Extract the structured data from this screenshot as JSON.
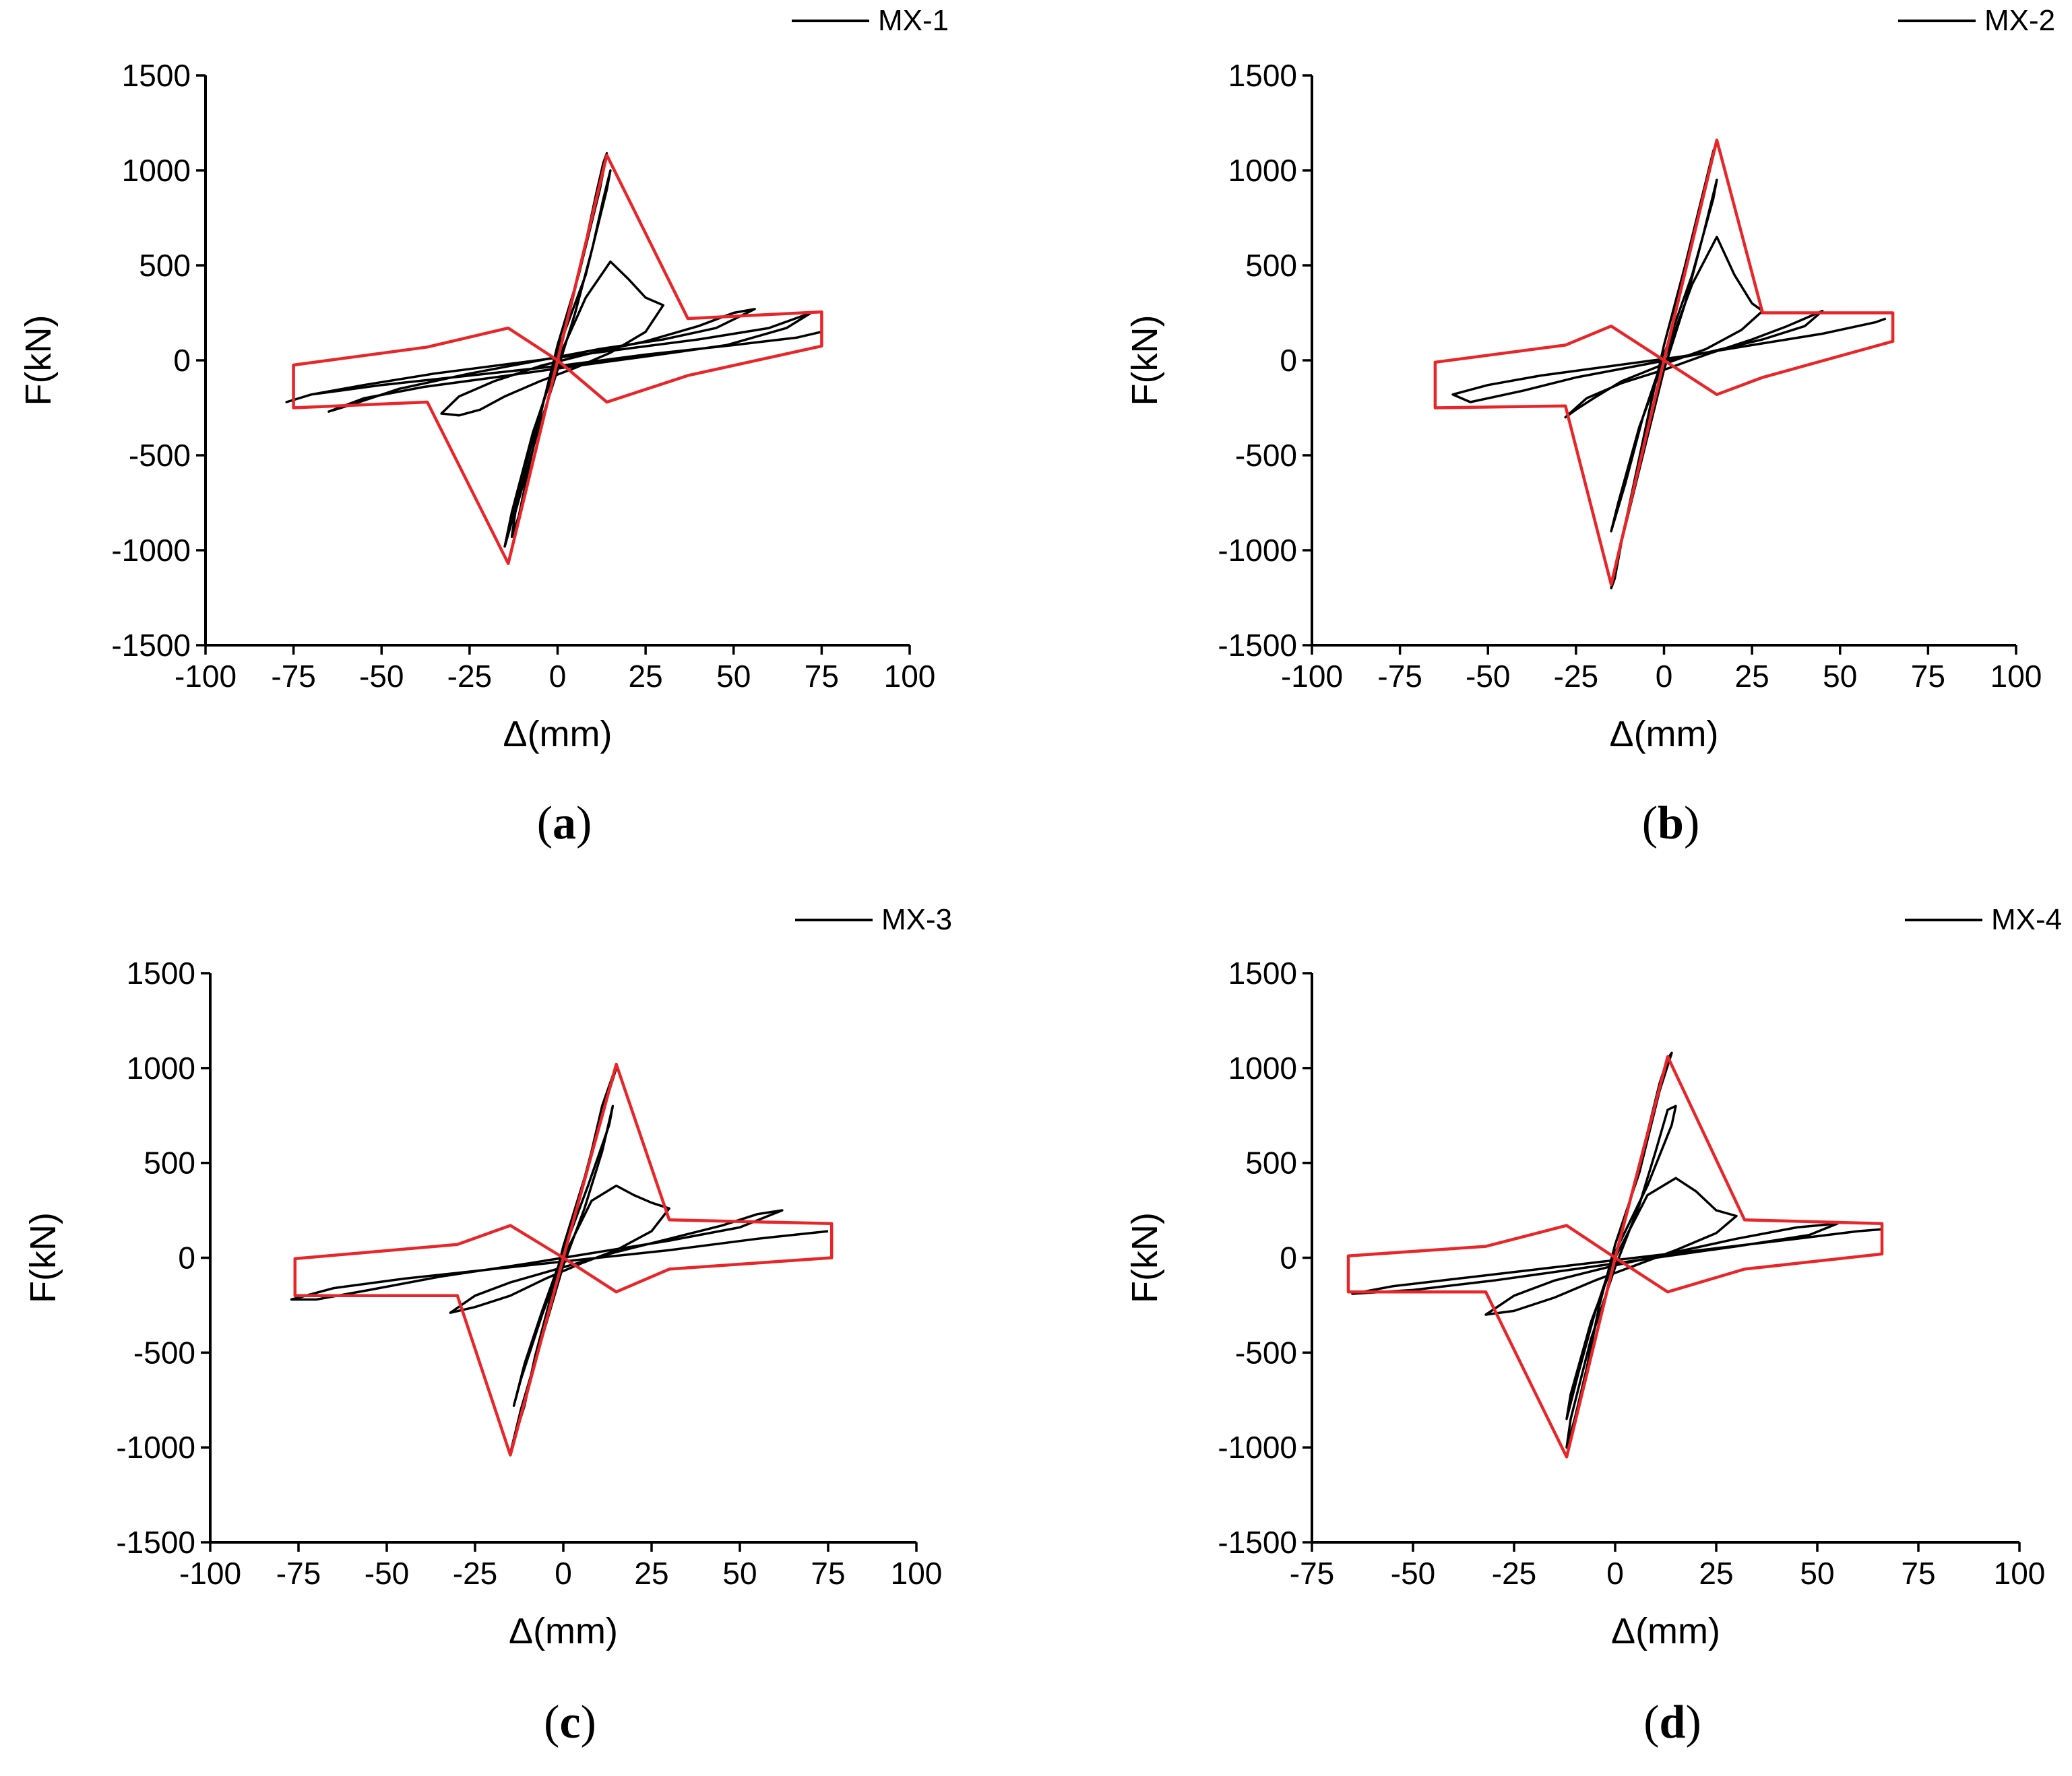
{
  "figure": {
    "colors": {
      "hysteresis": "#000000",
      "envelope": "#e8262a",
      "axis": "#000000"
    },
    "chart_data": [
      {
        "type": "line",
        "panel_caption": "a",
        "legend": "MX-1",
        "xlabel": "Δ(mm)",
        "ylabel": "F(kN)",
        "xlim": [
          -100,
          100
        ],
        "ylim": [
          -1500,
          1500
        ],
        "xticks": [
          -100,
          -75,
          -50,
          -25,
          0,
          25,
          50,
          75,
          100
        ],
        "yticks": [
          -1500,
          -1000,
          -500,
          0,
          500,
          1000,
          1500
        ],
        "tick_labels_x": [
          "-100",
          "-75",
          "-50",
          "-25",
          "0",
          "25",
          "50",
          "75",
          "100"
        ],
        "tick_labels_y": [
          "-1500",
          "-1000",
          "-500",
          "0",
          "500",
          "1000",
          "1500"
        ],
        "series": [
          {
            "name": "MX-1 hysteresis",
            "color": "#000000",
            "x": [
              0,
              4,
              8,
              11,
              13,
              14,
              12,
              6,
              0,
              -4,
              -8,
              -11,
              -13,
              -12,
              -6,
              0,
              5,
              10,
              13,
              15,
              14,
              8,
              0,
              -5,
              -10,
              -13,
              -15,
              -13,
              -7,
              0,
              8,
              15,
              20,
              25,
              30,
              25,
              15,
              5,
              -5,
              -15,
              -22,
              -28,
              -33,
              -28,
              -18,
              -5,
              10,
              25,
              40,
              50,
              56,
              45,
              30,
              12,
              -5,
              -25,
              -45,
              -58,
              -65,
              -55,
              -38,
              -18,
              5,
              25,
              48,
              65,
              72,
              60,
              40,
              15,
              -10,
              -35,
              -55,
              -70,
              -77,
              -70,
              -50,
              -25,
              0,
              25,
              50,
              68,
              75
            ],
            "y": [
              0,
              300,
              620,
              880,
              1040,
              1090,
              900,
              450,
              80,
              -220,
              -550,
              -820,
              -930,
              -800,
              -400,
              -50,
              250,
              600,
              850,
              1000,
              900,
              450,
              50,
              -280,
              -620,
              -850,
              -980,
              -800,
              -380,
              0,
              330,
              520,
              430,
              330,
              290,
              150,
              40,
              -40,
              -110,
              -190,
              -260,
              -290,
              -280,
              -190,
              -110,
              -30,
              40,
              100,
              180,
              250,
              270,
              170,
              110,
              60,
              0,
              -70,
              -150,
              -230,
              -270,
              -200,
              -140,
              -90,
              -30,
              20,
              80,
              170,
              250,
              170,
              110,
              50,
              -10,
              -70,
              -130,
              -180,
              -220,
              -180,
              -130,
              -80,
              -30,
              30,
              80,
              120,
              150
            ]
          },
          {
            "name": "MX-1 envelope",
            "color": "#e8262a",
            "x": [
              0,
              14,
              37,
              75,
              75,
              37,
              14,
              0,
              -14,
              -37,
              -75,
              -75,
              -37,
              -14,
              0
            ],
            "y": [
              0,
              1080,
              220,
              255,
              75,
              -80,
              -220,
              0,
              -1070,
              -220,
              -250,
              -25,
              70,
              170,
              0
            ]
          }
        ]
      },
      {
        "type": "line",
        "panel_caption": "b",
        "legend": "MX-2",
        "xlabel": "Δ(mm)",
        "ylabel": "F(kN)",
        "xlim": [
          -100,
          100
        ],
        "ylim": [
          -1500,
          1500
        ],
        "xticks": [
          -100,
          -75,
          -50,
          -25,
          0,
          25,
          50,
          75,
          100
        ],
        "yticks": [
          -1500,
          -1000,
          -500,
          0,
          500,
          1000,
          1500
        ],
        "tick_labels_x": [
          "-100",
          "-75",
          "-50",
          "-25",
          "0",
          "25",
          "50",
          "75",
          "100"
        ],
        "tick_labels_y": [
          "-1500",
          "-1000",
          "-500",
          "0",
          "500",
          "1000",
          "1500"
        ],
        "series": [
          {
            "name": "MX-2 hysteresis",
            "color": "#000000",
            "x": [
              0,
              4,
              8,
              12,
              14,
              15,
              12,
              6,
              0,
              -4,
              -8,
              -12,
              -14,
              -15,
              -12,
              -6,
              0,
              6,
              11,
              15,
              14,
              8,
              0,
              -6,
              -11,
              -15,
              -13,
              -7,
              0,
              8,
              15,
              20,
              25,
              28,
              22,
              12,
              0,
              -12,
              -20,
              -25,
              -28,
              -22,
              -12,
              0,
              12,
              25,
              35,
              45,
              40,
              28,
              12,
              -5,
              -25,
              -40,
              -55,
              -60,
              -50,
              -35,
              -15,
              5,
              25,
              45,
              60,
              63
            ],
            "y": [
              0,
              320,
              650,
              950,
              1100,
              1150,
              950,
              500,
              80,
              -250,
              -600,
              -950,
              -1150,
              -1200,
              -950,
              -500,
              -50,
              300,
              650,
              950,
              850,
              450,
              30,
              -300,
              -650,
              -900,
              -750,
              -350,
              0,
              400,
              650,
              450,
              300,
              260,
              160,
              60,
              -20,
              -110,
              -200,
              -260,
              -300,
              -200,
              -120,
              -50,
              30,
              110,
              180,
              260,
              180,
              110,
              40,
              -20,
              -90,
              -160,
              -220,
              -180,
              -130,
              -80,
              -30,
              20,
              80,
              140,
              200,
              220
            ]
          },
          {
            "name": "MX-2 envelope",
            "color": "#e8262a",
            "x": [
              0,
              15,
              28,
              65,
              65,
              28,
              15,
              0,
              -15,
              -28,
              -65,
              -65,
              -28,
              -15,
              0
            ],
            "y": [
              0,
              1160,
              250,
              250,
              100,
              -90,
              -180,
              0,
              -1180,
              -240,
              -250,
              -10,
              80,
              180,
              0
            ]
          }
        ]
      },
      {
        "type": "line",
        "panel_caption": "c",
        "legend": "MX-3",
        "xlabel": "Δ(mm)",
        "ylabel": "F(kN)",
        "xlim": [
          -100,
          100
        ],
        "ylim": [
          -1500,
          1500
        ],
        "xticks": [
          -100,
          -75,
          -50,
          -25,
          0,
          25,
          50,
          75,
          100
        ],
        "yticks": [
          -1500,
          -1000,
          -500,
          0,
          500,
          1000,
          1500
        ],
        "tick_labels_x": [
          "-100",
          "-75",
          "-50",
          "-25",
          "0",
          "25",
          "50",
          "75",
          "100"
        ],
        "tick_labels_y": [
          "-1500",
          "-1000",
          "-500",
          "0",
          "500",
          "1000",
          "1500"
        ],
        "series": [
          {
            "name": "MX-3 hysteresis",
            "color": "#000000",
            "x": [
              0,
              4,
              8,
              11,
              14,
              15,
              12,
              6,
              0,
              -4,
              -8,
              -11,
              -14,
              -15,
              -12,
              -6,
              0,
              6,
              11,
              14,
              13,
              7,
              0,
              -6,
              -11,
              -14,
              -12,
              -6,
              0,
              8,
              15,
              20,
              25,
              30,
              25,
              15,
              5,
              -5,
              -15,
              -25,
              -32,
              -25,
              -15,
              0,
              15,
              30,
              45,
              55,
              62,
              50,
              30,
              10,
              -10,
              -35,
              -55,
              -70,
              -77,
              -65,
              -45,
              -20,
              5,
              30,
              55,
              70,
              75
            ],
            "y": [
              0,
              280,
              560,
              800,
              960,
              1000,
              820,
              420,
              60,
              -240,
              -520,
              -780,
              -960,
              -1030,
              -800,
              -420,
              -40,
              260,
              560,
              800,
              700,
              380,
              30,
              -280,
              -560,
              -780,
              -640,
              -300,
              0,
              300,
              380,
              330,
              290,
              260,
              140,
              40,
              -30,
              -110,
              -200,
              -260,
              -290,
              -200,
              -130,
              -50,
              30,
              100,
              170,
              230,
              250,
              160,
              90,
              30,
              -30,
              -100,
              -170,
              -220,
              -220,
              -160,
              -110,
              -60,
              -10,
              40,
              100,
              130,
              140
            ]
          },
          {
            "name": "MX-3 envelope",
            "color": "#e8262a",
            "x": [
              0,
              15,
              30,
              76,
              76,
              30,
              15,
              0,
              -15,
              -30,
              -76,
              -76,
              -30,
              -15,
              0
            ],
            "y": [
              0,
              1020,
              200,
              180,
              0,
              -60,
              -180,
              0,
              -1040,
              -200,
              -200,
              -5,
              70,
              170,
              0
            ]
          }
        ]
      },
      {
        "type": "line",
        "panel_caption": "d",
        "legend": "MX-4",
        "xlabel": "Δ(mm)",
        "ylabel": "F(kN)",
        "xlim": [
          -75,
          100
        ],
        "ylim": [
          -1500,
          1500
        ],
        "xticks": [
          -75,
          -50,
          -25,
          0,
          25,
          50,
          75,
          100
        ],
        "yticks": [
          -1500,
          -1000,
          -500,
          0,
          500,
          1000,
          1500
        ],
        "tick_labels_x": [
          "-75",
          "-50",
          "-25",
          "0",
          "25",
          "50",
          "75",
          "100"
        ],
        "tick_labels_y": [
          "-1500",
          "-1000",
          "-500",
          "0",
          "500",
          "1000",
          "1500"
        ],
        "series": [
          {
            "name": "MX-4 hysteresis",
            "color": "#000000",
            "x": [
              0,
              4,
              8,
              11,
              13,
              14,
              11,
              6,
              0,
              -4,
              -7,
              -10,
              -12,
              -11,
              -6,
              0,
              6,
              10,
              13,
              15,
              14,
              8,
              0,
              -5,
              -9,
              -12,
              -11,
              -6,
              0,
              8,
              15,
              20,
              25,
              30,
              25,
              15,
              5,
              -5,
              -15,
              -25,
              -32,
              -25,
              -15,
              0,
              15,
              30,
              45,
              55,
              48,
              30,
              10,
              -10,
              -30,
              -50,
              -65,
              -55,
              -35,
              -15,
              5,
              25,
              45,
              60,
              66
            ],
            "y": [
              0,
              330,
              660,
              920,
              1050,
              1080,
              880,
              450,
              70,
              -260,
              -580,
              -850,
              -1000,
              -850,
              -430,
              -50,
              280,
              560,
              780,
              800,
              700,
              380,
              30,
              -290,
              -600,
              -850,
              -720,
              -340,
              0,
              330,
              420,
              350,
              250,
              220,
              130,
              40,
              -40,
              -120,
              -210,
              -280,
              -300,
              -200,
              -120,
              -40,
              30,
              100,
              160,
              180,
              120,
              60,
              0,
              -60,
              -120,
              -170,
              -190,
              -150,
              -100,
              -50,
              0,
              50,
              100,
              140,
              150
            ]
          },
          {
            "name": "MX-4 envelope",
            "color": "#e8262a",
            "x": [
              0,
              13,
              32,
              66,
              66,
              32,
              13,
              0,
              -12,
              -32,
              -66,
              -66,
              -32,
              -12,
              0
            ],
            "y": [
              0,
              1060,
              200,
              180,
              20,
              -60,
              -180,
              0,
              -1050,
              -180,
              -180,
              10,
              60,
              170,
              0
            ]
          }
        ]
      }
    ]
  }
}
